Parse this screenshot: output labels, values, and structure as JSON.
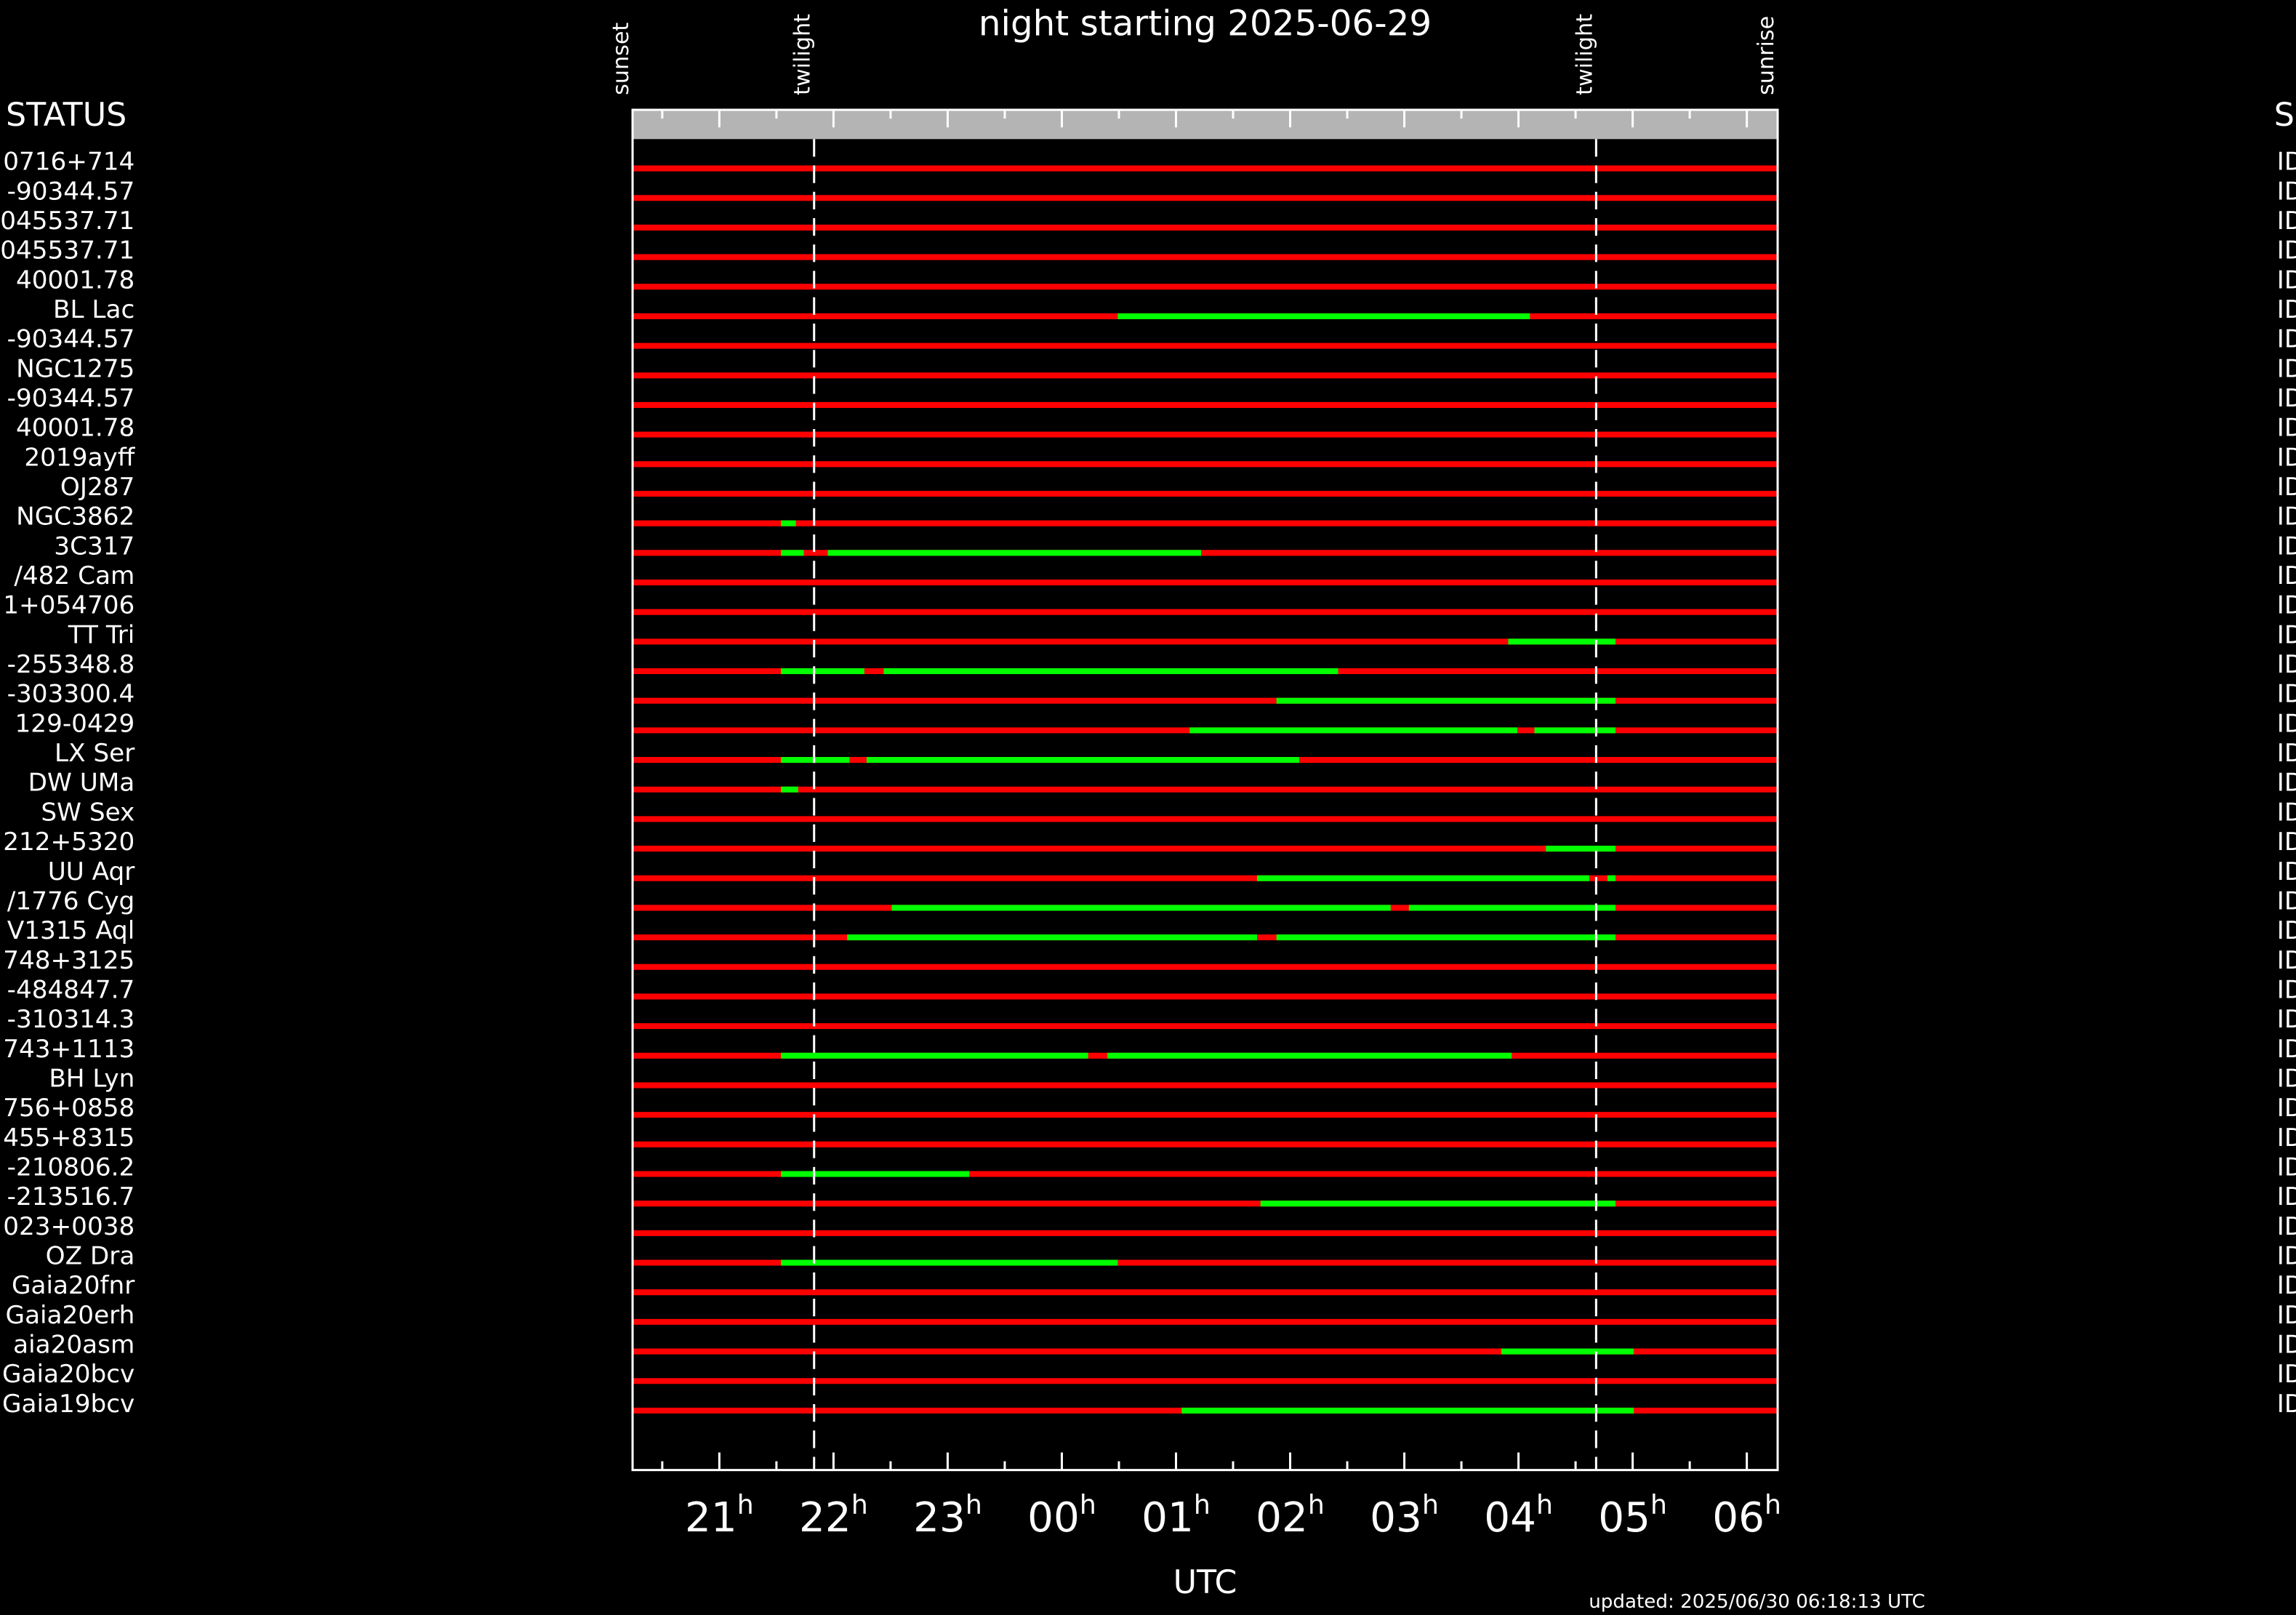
{
  "chart_data": {
    "type": "timeline",
    "title": "night starting 2025-06-29",
    "left_header": "STATUS",
    "right_header": "S",
    "xlabel": "UTC",
    "hour_suffix": "h",
    "footer": "updated: 2025/06/30 06:18:13 UTC",
    "xlim": [
      20.24,
      30.27
    ],
    "xticks": [
      {
        "value": 21,
        "label": "21"
      },
      {
        "value": 22,
        "label": "22"
      },
      {
        "value": 23,
        "label": "23"
      },
      {
        "value": 24,
        "label": "00"
      },
      {
        "value": 25,
        "label": "01"
      },
      {
        "value": 26,
        "label": "02"
      },
      {
        "value": 27,
        "label": "03"
      },
      {
        "value": 28,
        "label": "04"
      },
      {
        "value": 29,
        "label": "05"
      },
      {
        "value": 30,
        "label": "06"
      }
    ],
    "minor_xticks": [
      20.5,
      21.5,
      22.5,
      23.5,
      24.5,
      25.5,
      26.5,
      27.5,
      28.5,
      29.5
    ],
    "events": [
      {
        "label": "sunset",
        "value": 20.24
      },
      {
        "label": "twilight",
        "value": 21.83
      },
      {
        "label": "twilight",
        "value": 28.68
      },
      {
        "label": "sunrise",
        "value": 30.27
      }
    ],
    "unavailable_color": "#ff0000",
    "observable_color": "#00ff00",
    "rows": [
      {
        "name": "0716+714",
        "status": "ID",
        "segments": []
      },
      {
        "name": "-90344.57",
        "status": "ID",
        "segments": []
      },
      {
        "name": "045537.71",
        "status": "ID",
        "segments": []
      },
      {
        "name": "045537.71",
        "status": "ID",
        "segments": []
      },
      {
        "name": "40001.78",
        "status": "ID",
        "segments": []
      },
      {
        "name": "BL Lac",
        "status": "ID",
        "segments": [
          [
            24.49,
            28.1
          ]
        ]
      },
      {
        "name": "-90344.57",
        "status": "ID",
        "segments": []
      },
      {
        "name": "NGC1275",
        "status": "ID",
        "segments": []
      },
      {
        "name": "-90344.57",
        "status": "ID",
        "segments": []
      },
      {
        "name": "40001.78",
        "status": "ID",
        "segments": []
      },
      {
        "name": "2019ayff",
        "status": "ID",
        "segments": []
      },
      {
        "name": "OJ287",
        "status": "ID",
        "segments": []
      },
      {
        "name": "NGC3862",
        "status": "ID",
        "segments": [
          [
            21.54,
            21.67
          ]
        ]
      },
      {
        "name": "3C317",
        "status": "ID",
        "segments": [
          [
            21.54,
            21.74
          ],
          [
            21.95,
            25.22
          ]
        ]
      },
      {
        "name": "/482 Cam",
        "status": "ID",
        "segments": []
      },
      {
        "name": "1+054706",
        "status": "ID",
        "segments": []
      },
      {
        "name": "TT Tri",
        "status": "ID",
        "segments": [
          [
            27.91,
            28.85
          ]
        ]
      },
      {
        "name": "-255348.8",
        "status": "ID",
        "segments": [
          [
            21.54,
            22.27
          ],
          [
            22.44,
            26.42
          ]
        ]
      },
      {
        "name": "-303300.4",
        "status": "ID",
        "segments": [
          [
            25.88,
            28.85
          ]
        ]
      },
      {
        "name": "129-0429",
        "status": "ID",
        "segments": [
          [
            25.12,
            27.99
          ],
          [
            28.14,
            28.85
          ]
        ]
      },
      {
        "name": "LX Ser",
        "status": "ID",
        "segments": [
          [
            21.54,
            22.14
          ],
          [
            22.29,
            26.08
          ]
        ]
      },
      {
        "name": "DW UMa",
        "status": "ID",
        "segments": [
          [
            21.54,
            21.69
          ]
        ]
      },
      {
        "name": "SW Sex",
        "status": "ID",
        "segments": []
      },
      {
        "name": "212+5320",
        "status": "ID",
        "segments": [
          [
            28.24,
            28.85
          ]
        ]
      },
      {
        "name": "UU Aqr",
        "status": "ID",
        "segments": [
          [
            25.71,
            28.62
          ],
          [
            28.78,
            28.85
          ]
        ]
      },
      {
        "name": "/1776 Cyg",
        "status": "ID",
        "segments": [
          [
            22.51,
            26.88
          ],
          [
            27.04,
            28.85
          ]
        ]
      },
      {
        "name": "V1315 Aql",
        "status": "ID",
        "segments": [
          [
            22.12,
            25.71
          ],
          [
            25.88,
            28.85
          ]
        ]
      },
      {
        "name": "748+3125",
        "status": "ID",
        "segments": []
      },
      {
        "name": "-484847.7",
        "status": "ID",
        "segments": []
      },
      {
        "name": "-310314.3",
        "status": "ID",
        "segments": []
      },
      {
        "name": "743+1113",
        "status": "ID",
        "segments": [
          [
            21.54,
            24.23
          ],
          [
            24.4,
            27.94
          ]
        ]
      },
      {
        "name": "BH Lyn",
        "status": "ID",
        "segments": []
      },
      {
        "name": "756+0858",
        "status": "ID",
        "segments": []
      },
      {
        "name": "455+8315",
        "status": "ID",
        "segments": []
      },
      {
        "name": "-210806.2",
        "status": "ID",
        "segments": [
          [
            21.54,
            23.19
          ]
        ]
      },
      {
        "name": "-213516.7",
        "status": "ID",
        "segments": [
          [
            25.74,
            28.85
          ]
        ]
      },
      {
        "name": "023+0038",
        "status": "ID",
        "segments": []
      },
      {
        "name": "OZ Dra",
        "status": "ID",
        "segments": [
          [
            21.54,
            24.49
          ]
        ]
      },
      {
        "name": "Gaia20fnr",
        "status": "ID",
        "segments": []
      },
      {
        "name": "Gaia20erh",
        "status": "ID",
        "segments": []
      },
      {
        "name": "aia20asm",
        "status": "ID",
        "segments": [
          [
            27.85,
            29.01
          ]
        ]
      },
      {
        "name": "Gaia20bcv",
        "status": "ID",
        "segments": []
      },
      {
        "name": "Gaia19bcv",
        "status": "ID",
        "segments": [
          [
            25.05,
            29.01
          ]
        ]
      }
    ]
  }
}
